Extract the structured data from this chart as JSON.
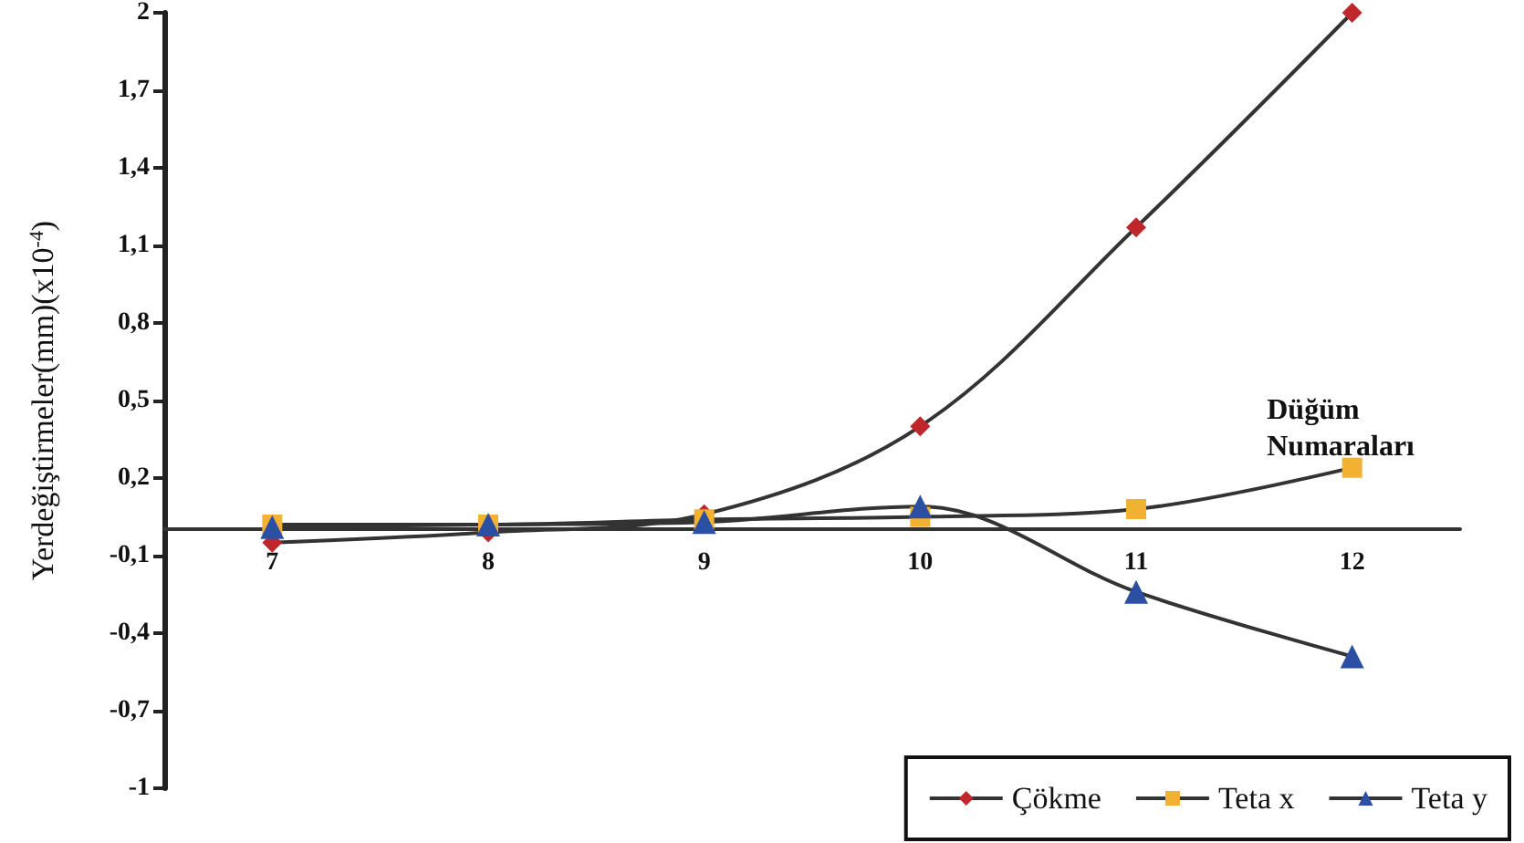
{
  "chart_data": {
    "type": "line",
    "xlabel": "Düğüm Numaraları",
    "ylabel": "Yerdeğiştirmeler(mm)(x10$^{-4}$)",
    "categories": [
      "7",
      "8",
      "9",
      "10",
      "11",
      "12"
    ],
    "series": [
      {
        "name": "Çökme",
        "color": "#c0272d",
        "marker": "diamond",
        "values": [
          -0.05,
          -0.01,
          0.06,
          0.4,
          1.17,
          2.0
        ]
      },
      {
        "name": "Teta x",
        "color": "#f2b132",
        "marker": "square",
        "values": [
          0.02,
          0.02,
          0.04,
          0.05,
          0.08,
          0.24
        ]
      },
      {
        "name": "Teta y",
        "color": "#2b4fa3",
        "marker": "triangle",
        "values": [
          0.01,
          0.02,
          0.03,
          0.09,
          -0.24,
          -0.49
        ]
      }
    ],
    "ylim": [
      -1,
      2
    ],
    "yticks": [
      {
        "value": -1,
        "label": "-1"
      },
      {
        "value": -0.7,
        "label": "-0,7"
      },
      {
        "value": -0.4,
        "label": "-0,4"
      },
      {
        "value": -0.1,
        "label": "-0,1"
      },
      {
        "value": 0.2,
        "label": "0,2"
      },
      {
        "value": 0.5,
        "label": "0,5"
      },
      {
        "value": 0.8,
        "label": "0,8"
      },
      {
        "value": 1.1,
        "label": "1,1"
      },
      {
        "value": 1.4,
        "label": "1,4"
      },
      {
        "value": 1.7,
        "label": "1,7"
      },
      {
        "value": 2,
        "label": "2"
      }
    ],
    "grid": false,
    "legend": "bottom right"
  }
}
